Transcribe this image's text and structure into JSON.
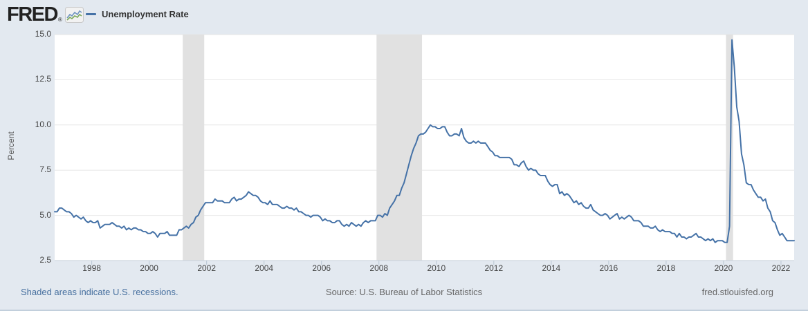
{
  "header": {
    "logo_text": "FRED",
    "logo_reg": "®",
    "legend_label": "Unemployment Rate"
  },
  "footer": {
    "left": "Shaded areas indicate U.S. recessions.",
    "center": "Source: U.S. Bureau of Labor Statistics",
    "right": "fred.stlouisfed.org"
  },
  "colors": {
    "background": "#e3e9f0",
    "plot_background": "#ffffff",
    "line": "#4572a7",
    "recession_band": "#e1e1e1",
    "gridline": "#e6e6e6",
    "axis_line": "#c7d0da",
    "tick_mark": "#b9c6d2",
    "tick_text": "#444444",
    "link_blue": "#47709f",
    "text_gray": "#666666",
    "text_dark": "#333333"
  },
  "chart_data": {
    "type": "line",
    "title": "Unemployment Rate",
    "xlabel": "",
    "ylabel": "Percent",
    "ylim": [
      2.5,
      15.0
    ],
    "yticks": [
      2.5,
      5.0,
      7.5,
      10.0,
      12.5,
      15.0
    ],
    "xticks": [
      1998,
      2000,
      2002,
      2004,
      2006,
      2008,
      2010,
      2012,
      2014,
      2016,
      2018,
      2020,
      2022
    ],
    "grid": "horizontal",
    "legend_position": "top-left",
    "frequency": "monthly",
    "x_start": {
      "year": 1996,
      "month": 9
    },
    "x_end": {
      "year": 2022,
      "month": 6
    },
    "recessions": [
      [
        "2001-03",
        "2001-11"
      ],
      [
        "2007-12",
        "2009-06"
      ],
      [
        "2020-02",
        "2020-04"
      ]
    ],
    "series": [
      {
        "name": "Unemployment Rate",
        "units": "Percent",
        "color": "#4572a7",
        "values": [
          5.2,
          5.2,
          5.4,
          5.4,
          5.3,
          5.2,
          5.2,
          5.1,
          4.9,
          5.0,
          4.9,
          4.8,
          4.9,
          4.7,
          4.6,
          4.7,
          4.6,
          4.6,
          4.7,
          4.3,
          4.4,
          4.5,
          4.5,
          4.5,
          4.6,
          4.5,
          4.4,
          4.4,
          4.3,
          4.4,
          4.2,
          4.3,
          4.2,
          4.3,
          4.3,
          4.2,
          4.2,
          4.1,
          4.1,
          4.0,
          4.0,
          4.1,
          4.0,
          3.8,
          4.0,
          4.0,
          4.0,
          4.1,
          3.9,
          3.9,
          3.9,
          3.9,
          4.2,
          4.2,
          4.3,
          4.4,
          4.3,
          4.5,
          4.6,
          4.9,
          5.0,
          5.3,
          5.5,
          5.7,
          5.7,
          5.7,
          5.7,
          5.9,
          5.8,
          5.8,
          5.8,
          5.7,
          5.7,
          5.7,
          5.9,
          6.0,
          5.8,
          5.9,
          5.9,
          6.0,
          6.1,
          6.3,
          6.2,
          6.1,
          6.1,
          6.0,
          5.8,
          5.7,
          5.7,
          5.6,
          5.8,
          5.6,
          5.6,
          5.6,
          5.5,
          5.4,
          5.4,
          5.5,
          5.4,
          5.4,
          5.3,
          5.4,
          5.2,
          5.2,
          5.1,
          5.0,
          5.0,
          4.9,
          5.0,
          5.0,
          5.0,
          4.9,
          4.7,
          4.8,
          4.7,
          4.7,
          4.6,
          4.6,
          4.7,
          4.7,
          4.5,
          4.4,
          4.5,
          4.4,
          4.6,
          4.5,
          4.4,
          4.5,
          4.4,
          4.6,
          4.7,
          4.6,
          4.7,
          4.7,
          4.7,
          5.0,
          5.0,
          4.9,
          5.1,
          5.0,
          5.4,
          5.6,
          5.8,
          6.1,
          6.1,
          6.5,
          6.8,
          7.3,
          7.8,
          8.3,
          8.7,
          9.0,
          9.4,
          9.5,
          9.5,
          9.6,
          9.8,
          10.0,
          9.9,
          9.9,
          9.8,
          9.8,
          9.9,
          9.9,
          9.6,
          9.4,
          9.4,
          9.5,
          9.5,
          9.4,
          9.8,
          9.3,
          9.1,
          9.0,
          9.0,
          9.1,
          9.0,
          9.1,
          9.0,
          9.0,
          9.0,
          8.8,
          8.6,
          8.5,
          8.3,
          8.3,
          8.2,
          8.2,
          8.2,
          8.2,
          8.2,
          8.1,
          7.8,
          7.8,
          7.7,
          7.9,
          8.0,
          7.7,
          7.5,
          7.6,
          7.5,
          7.5,
          7.3,
          7.2,
          7.2,
          7.2,
          6.9,
          6.7,
          6.6,
          6.7,
          6.7,
          6.2,
          6.3,
          6.1,
          6.2,
          6.1,
          5.9,
          5.7,
          5.8,
          5.6,
          5.7,
          5.5,
          5.4,
          5.4,
          5.6,
          5.3,
          5.2,
          5.1,
          5.0,
          5.0,
          5.1,
          5.0,
          4.8,
          4.9,
          5.0,
          5.1,
          4.8,
          4.9,
          4.8,
          4.9,
          5.0,
          4.9,
          4.7,
          4.7,
          4.7,
          4.6,
          4.4,
          4.4,
          4.4,
          4.3,
          4.3,
          4.4,
          4.2,
          4.1,
          4.2,
          4.1,
          4.1,
          4.1,
          4.0,
          4.0,
          3.8,
          4.0,
          3.8,
          3.8,
          3.7,
          3.8,
          3.8,
          3.9,
          4.0,
          3.8,
          3.8,
          3.7,
          3.6,
          3.7,
          3.6,
          3.7,
          3.5,
          3.6,
          3.6,
          3.6,
          3.5,
          3.5,
          4.4,
          14.7,
          13.2,
          11.0,
          10.2,
          8.4,
          7.8,
          6.8,
          6.7,
          6.7,
          6.4,
          6.2,
          6.0,
          6.0,
          5.8,
          5.9,
          5.4,
          5.2,
          4.7,
          4.6,
          4.2,
          3.9,
          4.0,
          3.8,
          3.6,
          3.6,
          3.6,
          3.6
        ]
      }
    ]
  }
}
